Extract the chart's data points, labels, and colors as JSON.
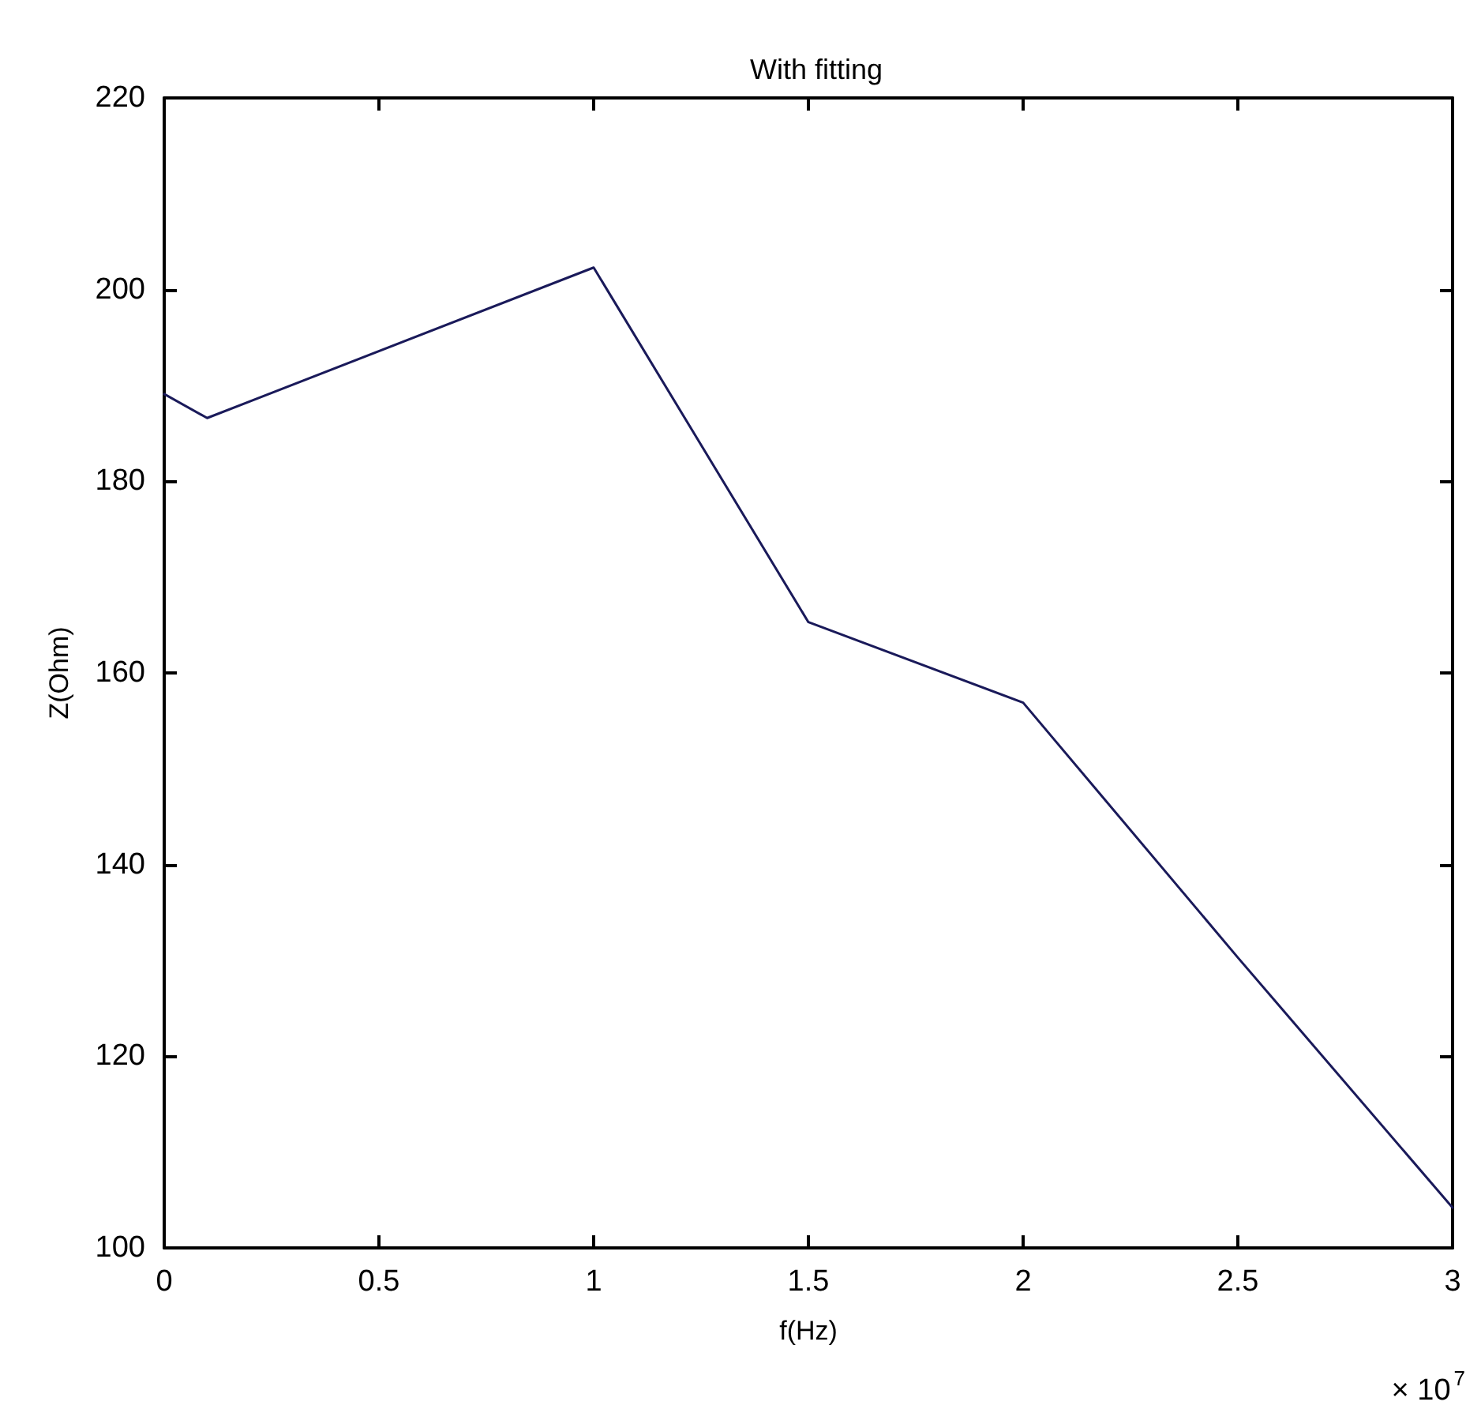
{
  "chart_data": {
    "type": "line",
    "title": "With fitting",
    "xlabel": "f(Hz)",
    "ylabel": "Z(Ohm)",
    "x": [
      0,
      0.1,
      1,
      1.5,
      2,
      2.5,
      3
    ],
    "series": [
      {
        "color": "#1a1a5a",
        "values": [
          189.1,
          186.6,
          202.3,
          165.3,
          156.9,
          130.3,
          104.2
        ]
      }
    ],
    "xlim": [
      0,
      3
    ],
    "xticks": [
      0,
      0.5,
      1,
      1.5,
      2,
      2.5,
      3
    ],
    "ylim": [
      100,
      220
    ],
    "yticks": [
      100,
      120,
      140,
      160,
      180,
      200,
      220
    ],
    "annotations": [
      "× 10$^{7}$"
    ],
    "grid": false,
    "marker": "none",
    "line_style": "solid"
  }
}
